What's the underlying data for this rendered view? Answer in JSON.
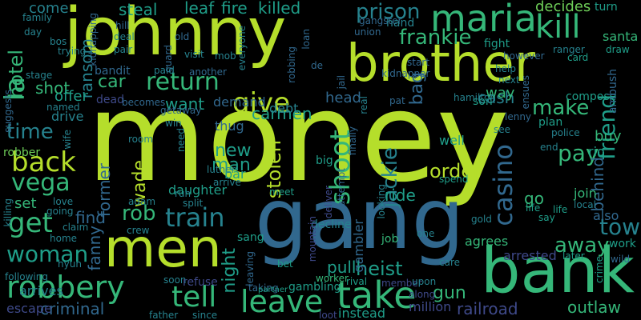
{
  "words": [
    "money",
    "gang",
    "johnny",
    "brother",
    "bank",
    "men",
    "maria",
    "robbery",
    "kill",
    "leave",
    "take",
    "give",
    "return",
    "frankie",
    "back",
    "tell",
    "get",
    "vega",
    "time",
    "woman",
    "train",
    "rob",
    "shoot",
    "casino",
    "town",
    "pay",
    "friend",
    "make",
    "order",
    "heist",
    "stolen",
    "new",
    "man",
    "wade",
    "jackie",
    "carmen",
    "la",
    "hotel",
    "shot",
    "prison",
    "killed",
    "fire",
    "leaf",
    "steal",
    "come",
    "decides",
    "railroad",
    "outlaw",
    "away",
    "gun",
    "pull",
    "criminal",
    "find",
    "set",
    "ransom",
    "car",
    "want",
    "night",
    "former",
    "fanny",
    "behind",
    "go",
    "ride",
    "cash",
    "bag",
    "head",
    "debt",
    "demand",
    "offer",
    "drive",
    "robber",
    "arrives",
    "escape",
    "following",
    "bandit",
    "dead",
    "thug",
    "bar",
    "daughter",
    "way",
    "son",
    "well",
    "buy",
    "rio",
    "join",
    "also",
    "work",
    "later",
    "arrested",
    "agrees",
    "job",
    "gambler",
    "gambling",
    "worker",
    "rival",
    "instead",
    "million",
    "member",
    "along",
    "upon",
    "sang",
    "taking",
    "loot",
    "since",
    "father",
    "soon",
    "refuse",
    "decline",
    "partner",
    "meet",
    "arrive",
    "luther",
    "room",
    "plan",
    "police",
    "end",
    "see",
    "lenny",
    "hamilton",
    "compose",
    "santa",
    "turn",
    "card",
    "draw",
    "ambush",
    "ranger",
    "help",
    "next",
    "however",
    "life",
    "local",
    "gold",
    "say",
    "spend",
    "crew",
    "home",
    "claim",
    "love",
    "going",
    "killing",
    "hyun",
    "life",
    "crime",
    "wild",
    "care",
    "one",
    "bet",
    "leaving",
    "big",
    "looking",
    "finally",
    "attempt",
    "deliver",
    "mountain",
    "split",
    "adam",
    "run",
    "win",
    "need",
    "getaway",
    "becomes",
    "named",
    "wife",
    "suggests",
    "stage",
    "day",
    "bos",
    "trying",
    "kidnapping",
    "family",
    "deal",
    "pair",
    "hill",
    "guard",
    "visit",
    "old",
    "everyone",
    "mob",
    "loan",
    "robbing",
    "jail",
    "de",
    "gangster",
    "union",
    "hand",
    "kidnapper",
    "real",
    "start",
    "pat",
    "another",
    "paid",
    "ensues",
    "fight"
  ],
  "palette": [
    "#440154",
    "#482878",
    "#3e4989",
    "#31688e",
    "#26828e",
    "#1f9e89",
    "#35b779",
    "#6ece58",
    "#b5de2b",
    "#fde725"
  ]
}
